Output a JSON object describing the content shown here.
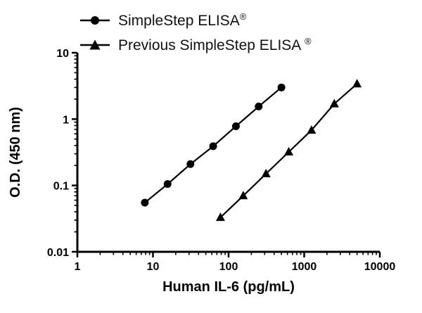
{
  "legend": {
    "items": [
      {
        "label": "SimpleStep ELISA",
        "reg": "®",
        "marker": "circle"
      },
      {
        "label": "Previous SimpleStep ELISA ",
        "reg": "®",
        "marker": "triangle"
      }
    ]
  },
  "chart_data": {
    "type": "line",
    "title": "",
    "xlabel": "Human IL-6 (pg/mL)",
    "ylabel": "O.D. (450 nm)",
    "xscale": "log",
    "yscale": "log",
    "xlim": [
      1,
      10000
    ],
    "ylim": [
      0.01,
      10
    ],
    "xticks": [
      1,
      10,
      100,
      1000,
      10000
    ],
    "xtick_labels": [
      "1",
      "10",
      "100",
      "1000",
      "10000"
    ],
    "yticks": [
      0.01,
      0.1,
      1,
      10
    ],
    "ytick_labels": [
      "0.01",
      "0.1",
      "1",
      "10"
    ],
    "grid": false,
    "legend_position": "top-left",
    "line_color": "#000000",
    "marker_color": "#000000",
    "series": [
      {
        "name": "SimpleStep ELISA®",
        "marker": "circle",
        "x": [
          7.8,
          15.6,
          31.3,
          62.5,
          125,
          250,
          500
        ],
        "y": [
          0.055,
          0.105,
          0.21,
          0.39,
          0.78,
          1.55,
          3.0
        ]
      },
      {
        "name": "Previous SimpleStep ELISA ®",
        "marker": "triangle",
        "x": [
          78.1,
          156.3,
          312.5,
          625,
          1250,
          2500,
          5000
        ],
        "y": [
          0.033,
          0.07,
          0.15,
          0.32,
          0.68,
          1.7,
          3.4
        ]
      }
    ]
  }
}
